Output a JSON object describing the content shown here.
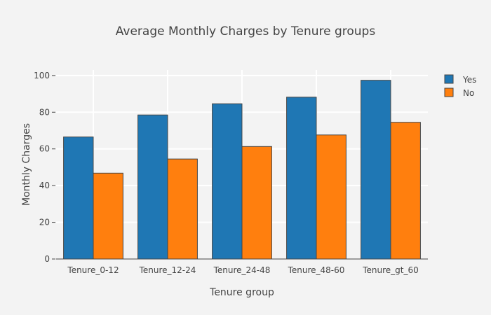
{
  "chart_data": {
    "type": "bar",
    "title": "Average Monthly Charges by Tenure groups",
    "xlabel": "Tenure group",
    "ylabel": "Monthly Charges",
    "categories": [
      "Tenure_0-12",
      "Tenure_12-24",
      "Tenure_24-48",
      "Tenure_48-60",
      "Tenure_gt_60"
    ],
    "series": [
      {
        "name": "Yes",
        "values": [
          66.5,
          78.5,
          84.6,
          88.2,
          97.4
        ],
        "color": "#1f77b4"
      },
      {
        "name": "No",
        "values": [
          46.8,
          54.5,
          61.3,
          67.6,
          74.5
        ],
        "color": "#ff7f0e"
      }
    ],
    "ylim": [
      0,
      103
    ],
    "yticks": [
      0,
      20,
      40,
      60,
      80,
      100
    ],
    "grid": true,
    "legend_position": "top-right",
    "background": "#f3f3f3",
    "gridline_color": "#ffffff",
    "bar_outline_color": "#444444"
  }
}
